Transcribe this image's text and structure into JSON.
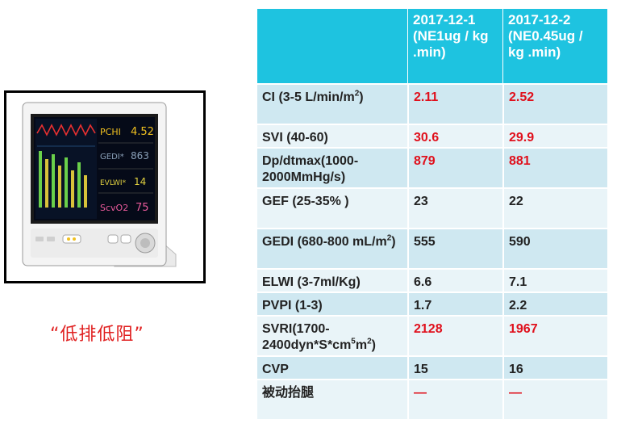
{
  "caption": "“低排低阻”",
  "monitor": {
    "screen_labels": [
      "PCHI",
      "4.52",
      "GEDI*",
      "863",
      "EVLWI*",
      "14",
      "ScvO2",
      "75"
    ]
  },
  "table": {
    "headers": [
      "",
      "2017-12-1 (NE1ug / kg .min)",
      "2017-12-2 (NE0.45ug / kg .min)"
    ],
    "rows": [
      {
        "label": "CI    (3-5 L/min/m",
        "label_sup": "2",
        "label_after": ")",
        "v1": "2.11",
        "v2": "2.52",
        "red": true
      },
      {
        "label": "SVI (40-60)",
        "v1": "30.6",
        "v2": "29.9",
        "red": true
      },
      {
        "label": "Dp/dtmax(1000-2000MmHg/s)",
        "v1": "879",
        "v2": "881",
        "red": true
      },
      {
        "label": "GEF (25-35% )",
        "v1": "23",
        "v2": "22",
        "red": false
      },
      {
        "label": "GEDI  (680-800 mL/m",
        "label_sup": "2",
        "label_after": ")",
        "v1": "555",
        "v2": "590",
        "red": false
      },
      {
        "label": "ELWI (3-7ml/Kg)",
        "v1": "6.6",
        "v2": "7.1",
        "red": false
      },
      {
        "label": "PVPI (1-3)",
        "v1": "1.7",
        "v2": "2.2",
        "red": false
      },
      {
        "label": "SVRI(1700-2400dyn*S*cm",
        "label_sup": "5",
        "label_after": "m",
        "label_sup2": "2",
        "label_after2": ")",
        "v1": "2128",
        "v2": "1967",
        "red": true
      },
      {
        "label": "CVP",
        "v1": "15",
        "v2": "16",
        "red": false
      },
      {
        "label": "被动抬腿",
        "v1": "—",
        "v2": "—",
        "red": true
      }
    ]
  },
  "colors": {
    "header": "#1ec3e0",
    "row_odd": "#cfe8f1",
    "row_even": "#e9f4f8",
    "highlight": "#e0101c"
  }
}
